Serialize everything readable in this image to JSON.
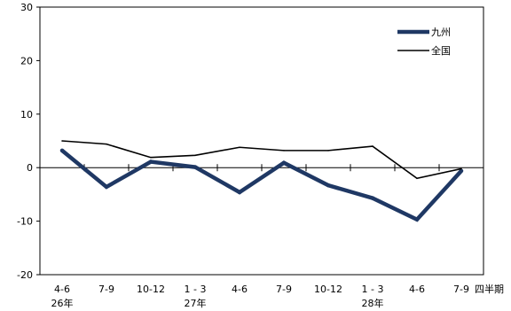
{
  "chart_data": {
    "type": "line",
    "categories": [
      {
        "label": "4-6",
        "sublabel": "26年"
      },
      {
        "label": "7-9",
        "sublabel": ""
      },
      {
        "label": "10-12",
        "sublabel": ""
      },
      {
        "label": "1 - 3",
        "sublabel": "27年"
      },
      {
        "label": "4-6",
        "sublabel": ""
      },
      {
        "label": "7-9",
        "sublabel": ""
      },
      {
        "label": "10-12",
        "sublabel": ""
      },
      {
        "label": "1 - 3",
        "sublabel": "28年"
      },
      {
        "label": "4-6",
        "sublabel": ""
      },
      {
        "label": "7-9",
        "sublabel": ""
      }
    ],
    "series": [
      {
        "name": "九州",
        "values": [
          3.2,
          -3.6,
          1.1,
          0.1,
          -4.6,
          0.9,
          -3.3,
          -5.7,
          -9.7,
          -0.6
        ],
        "color": "#1f3864",
        "style": "thick"
      },
      {
        "name": "全国",
        "values": [
          5.0,
          4.4,
          1.9,
          2.3,
          3.8,
          3.2,
          3.2,
          4.0,
          -2.0,
          -0.2
        ],
        "color": "#000000",
        "style": "thin"
      }
    ],
    "ylim": [
      -20,
      30
    ],
    "yticks": [
      -20,
      -10,
      0,
      10,
      20,
      30
    ],
    "xlabel": "四半期",
    "ylabel": "",
    "legend_position": "top-right"
  }
}
